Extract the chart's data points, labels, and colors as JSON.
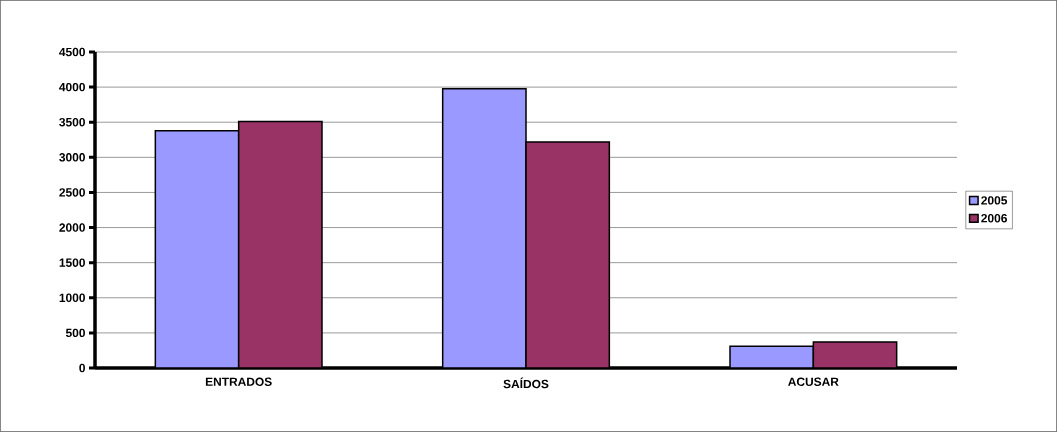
{
  "chart_data": {
    "type": "bar",
    "categories": [
      "ENTRADOS",
      "SAÍDOS",
      "ACUSAR"
    ],
    "series": [
      {
        "name": "2005",
        "color": "#9999ff",
        "values": [
          3380,
          3975,
          310
        ]
      },
      {
        "name": "2006",
        "color": "#993366",
        "values": [
          3510,
          3220,
          370
        ]
      }
    ],
    "ylim": [
      0,
      4500
    ],
    "yticks": [
      0,
      500,
      1000,
      1500,
      2000,
      2500,
      3000,
      3500,
      4000,
      4500
    ],
    "grid": "y",
    "legend": "right"
  }
}
